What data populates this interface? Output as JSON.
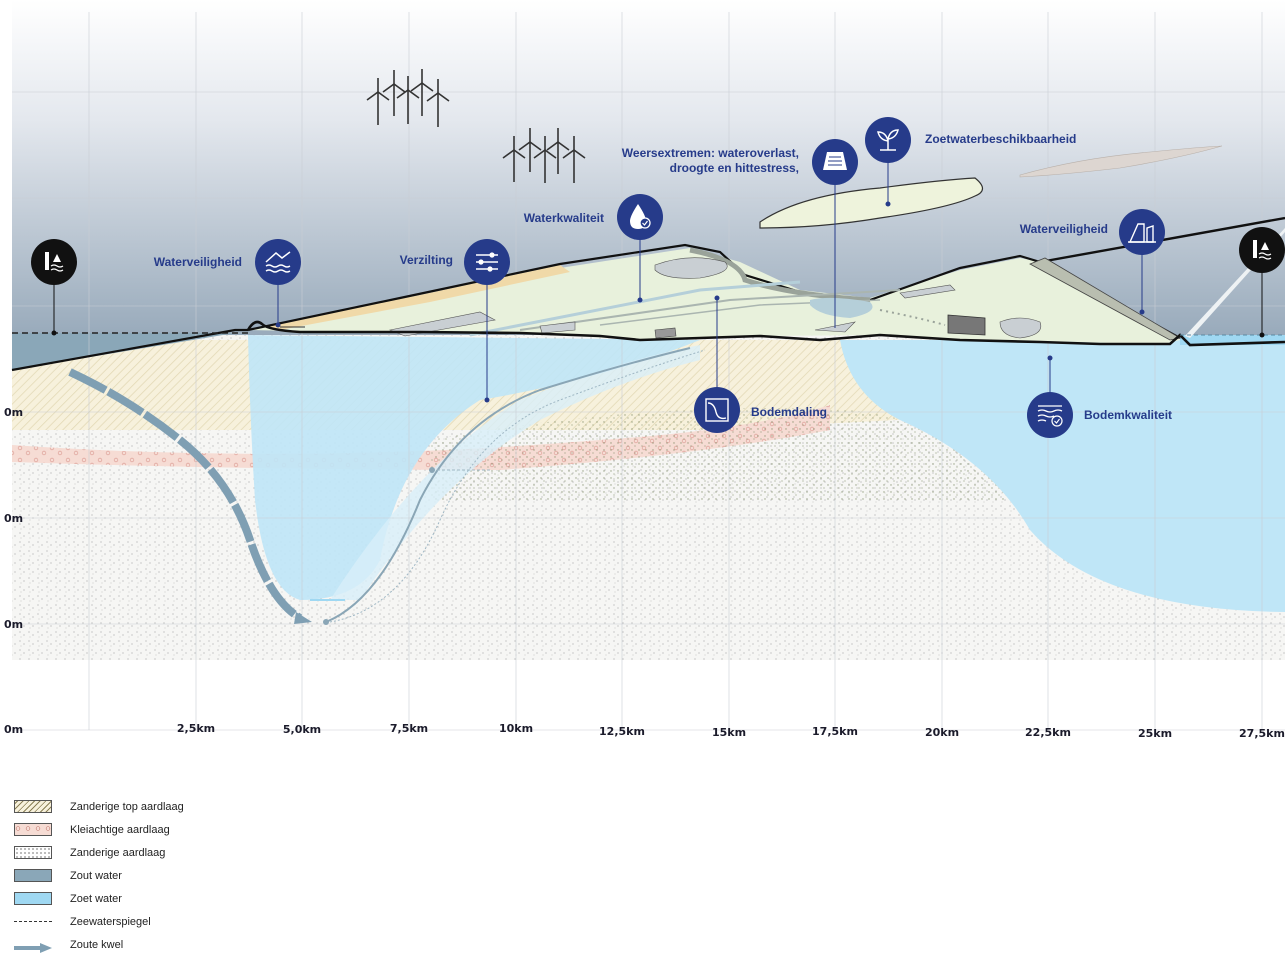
{
  "labels": {
    "waterveiligheid_left": "Waterveiligheid",
    "verzilting": "Verzilting",
    "waterkwaliteit": "Waterkwaliteit",
    "weersextremen_line1": "Weersextremen: wateroverlast,",
    "weersextremen_line2": "droogte en hittestress,",
    "zoetwater": "Zoetwaterbeschikbaarheid",
    "waterveiligheid_right": "Waterveiligheid",
    "bodemdaling": "Bodemdaling",
    "bodemkwaliteit": "Bodemkwaliteit"
  },
  "axis": {
    "x_ticks": [
      "0m",
      "2,5km",
      "5,0km",
      "7,5km",
      "10km",
      "12,5km",
      "15km",
      "17,5km",
      "20km",
      "22,5km",
      "25km",
      "27,5km"
    ],
    "y_ticks": [
      "0m",
      "0m",
      "0m"
    ]
  },
  "legend": [
    {
      "label": "Zanderige top aardlaag",
      "swatch": "hatch"
    },
    {
      "label": "Kleiachtige aardlaag",
      "swatch": "clay"
    },
    {
      "label": "Zanderige aardlaag",
      "swatch": "sand"
    },
    {
      "label": "Zout water",
      "swatch": "salt",
      "color": "#8aa7b8"
    },
    {
      "label": "Zoet water",
      "swatch": "fresh",
      "color": "#9fd8f2"
    },
    {
      "label": "Zeewaterspiegel",
      "swatch": "dash"
    },
    {
      "label": "Zoute kwel",
      "swatch": "arrow",
      "color": "#7f9fb3"
    }
  ],
  "colors": {
    "marker_blue": "#263b8a",
    "marker_black": "#111111",
    "land": "#e8f1dc",
    "sea": "#8aa7b8",
    "fresh_water": "#bfe6f7"
  },
  "icons": {
    "sea_level_left": "sea-level-rise-icon",
    "waterveiligheid_left": "waves-dike-icon",
    "verzilting": "salinity-sliders-icon",
    "waterkwaliteit": "water-drop-check-icon",
    "weersextremen": "rainfall-gauge-icon",
    "zoetwater": "sprout-icon",
    "waterveiligheid_right": "dike-wall-icon",
    "bodemdaling": "subsidence-graph-icon",
    "bodemkwaliteit": "soil-check-icon",
    "sea_level_right": "sea-level-rise-icon"
  }
}
